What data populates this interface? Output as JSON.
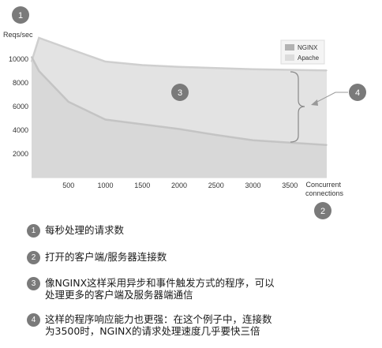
{
  "chart_data": {
    "type": "area",
    "ylabel": "Reqs/sec",
    "xlabel": "Concurrent\nconnections",
    "xlim": [
      0,
      4000
    ],
    "ylim": [
      0,
      12000
    ],
    "xticks": [
      500,
      1000,
      1500,
      2000,
      2500,
      3000,
      3500
    ],
    "yticks": [
      2000,
      4000,
      6000,
      8000,
      10000
    ],
    "legend_position": "top-right",
    "series": [
      {
        "name": "NGINX",
        "color": "#e3e3e3",
        "line_color": "#cfcfcf",
        "x": [
          0,
          100,
          500,
          1000,
          1500,
          2000,
          2500,
          3000,
          3500,
          4000
        ],
        "values": [
          9800,
          11800,
          10900,
          9800,
          9500,
          9350,
          9250,
          9150,
          9100,
          9050
        ]
      },
      {
        "name": "Apache",
        "color": "#d6d6d6",
        "line_color": "#c4c4c4",
        "x": [
          0,
          100,
          500,
          1000,
          1500,
          2000,
          2500,
          3000,
          3500,
          4000
        ],
        "values": [
          10200,
          9000,
          6400,
          4900,
          4500,
          4100,
          3600,
          3150,
          2950,
          2750
        ]
      }
    ]
  },
  "markers": [
    "1",
    "2",
    "3",
    "4"
  ],
  "notes": [
    {
      "num": "1",
      "text": "每秒处理的请求数"
    },
    {
      "num": "2",
      "text": "打开的客户端/服务器连接数"
    },
    {
      "num": "3",
      "text": "像NGINX这样采用异步和事件触发方式的程序，可以\n处理更多的客户端及服务器端通信"
    },
    {
      "num": "4",
      "text": "这样的程序响应能力也更强：在这个例子中，连接数\n为3500时，NGINX的请求处理速度几乎要快三倍"
    }
  ]
}
